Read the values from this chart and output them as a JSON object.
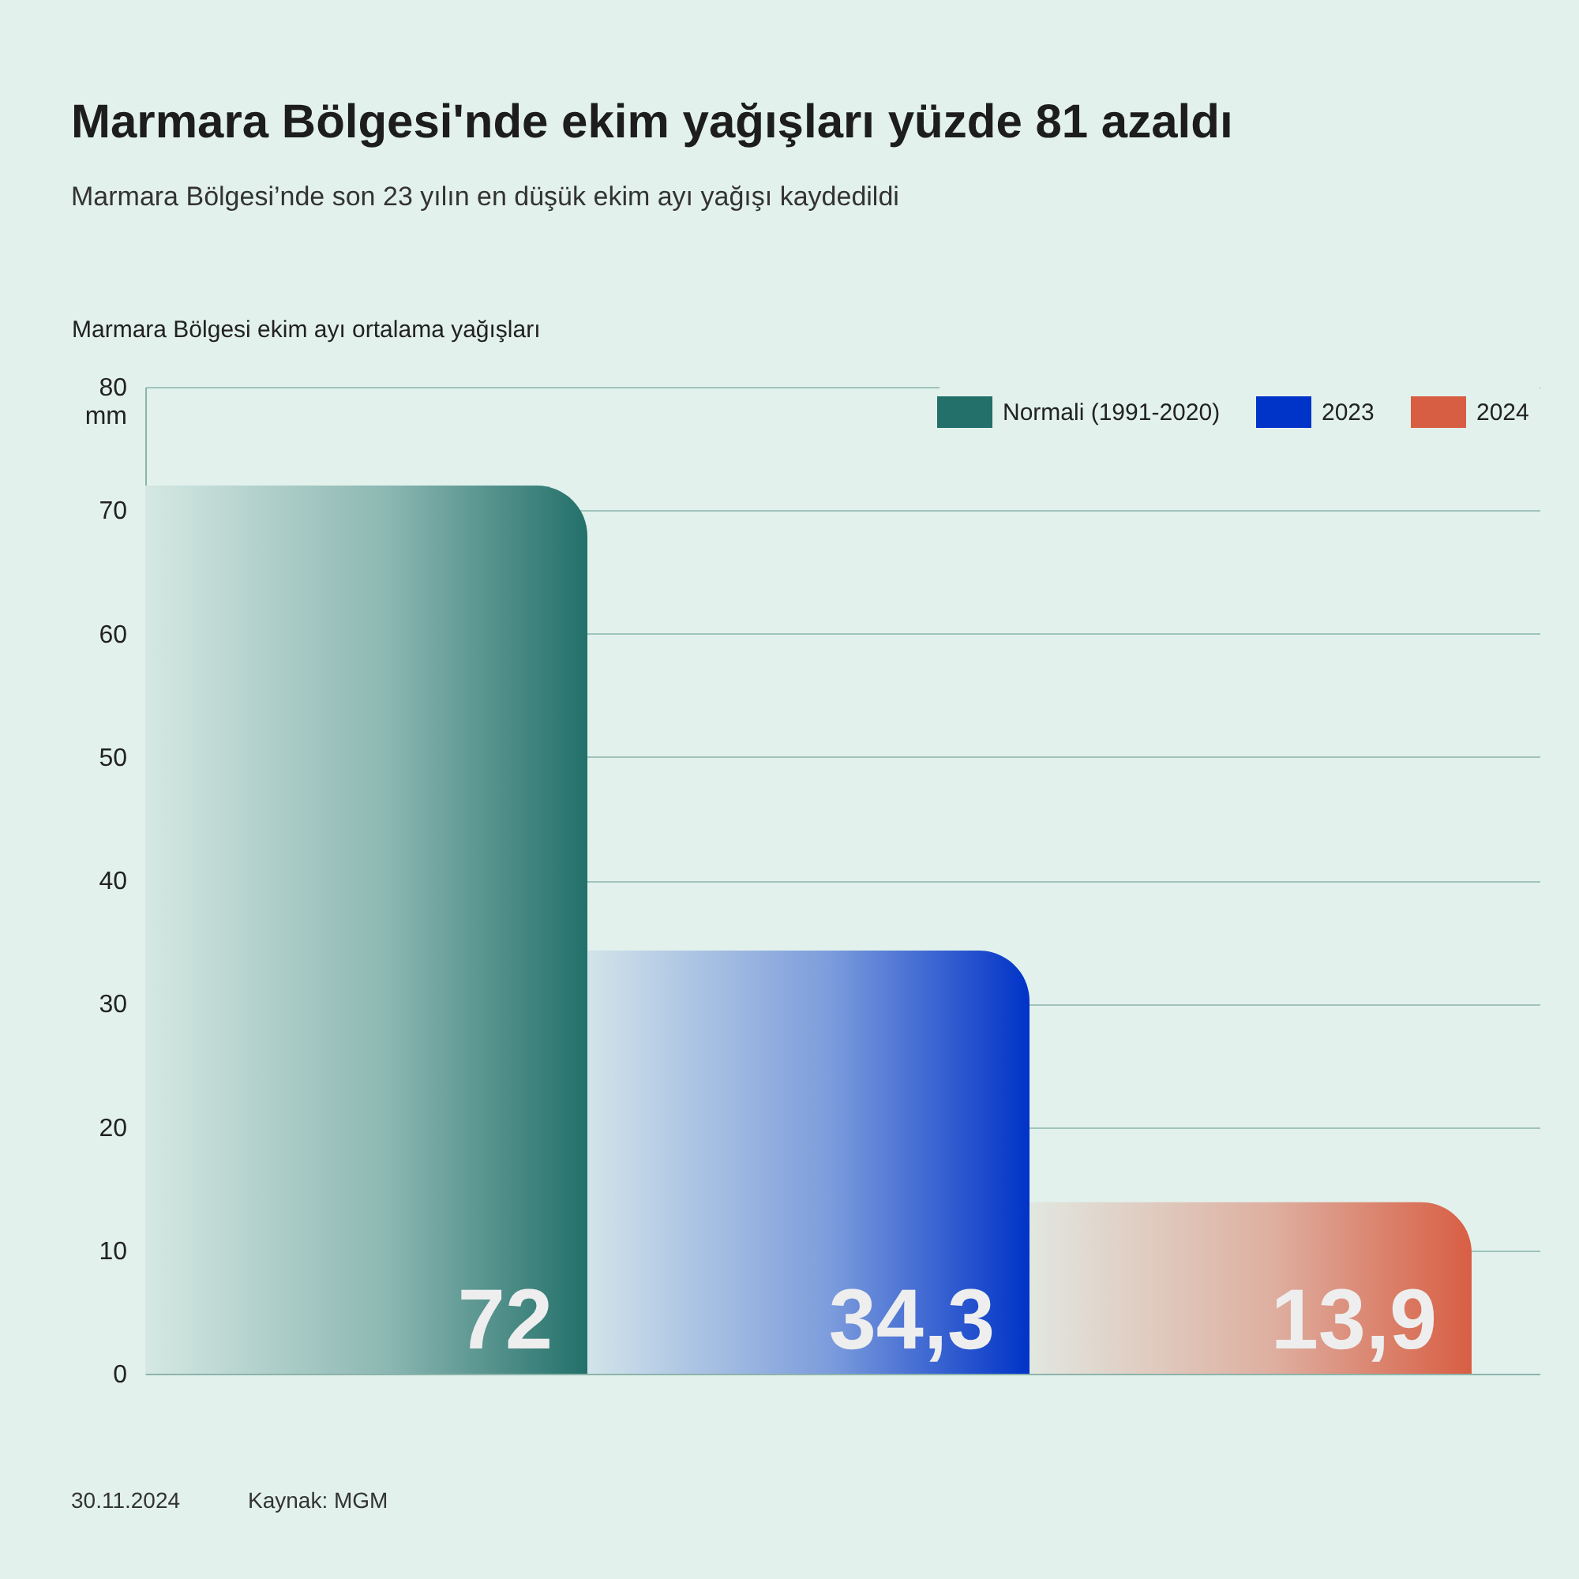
{
  "chart_data": {
    "type": "bar",
    "title": "Marmara Bölgesi'nde ekim yağışları yüzde 81 azaldı",
    "subtitle": "Marmara Bölgesi’nde son 23 yılın en düşük ekim ayı yağışı kaydedildi",
    "ylabel": "Marmara Bölgesi ekim ayı ortalama yağışları",
    "annotations": [
      "30.11.2024",
      "Kaynak: MGM"
    ],
    "categories": [
      null,
      null,
      null
    ],
    "series": [
      {
        "name": "Normali (1991-2020)",
        "color": "#23706a",
        "values": [
          72,
          null,
          null
        ],
        "value_labels": [
          "72",
          null,
          null
        ]
      },
      {
        "name": "2023",
        "color": "#0033c8",
        "values": [
          null,
          34.3,
          null
        ],
        "value_labels": [
          null,
          "34,3",
          null
        ]
      },
      {
        "name": "2024",
        "color": "#d85e43",
        "values": [
          null,
          null,
          13.9
        ],
        "value_labels": [
          null,
          null,
          "13,9"
        ]
      }
    ],
    "ylim": [
      0,
      80
    ],
    "yticks": [
      0,
      10,
      20,
      30,
      40,
      50,
      60,
      70,
      {
        "value": 80,
        "label": "80\nmm"
      }
    ],
    "grid": "y",
    "legend": "top right"
  }
}
